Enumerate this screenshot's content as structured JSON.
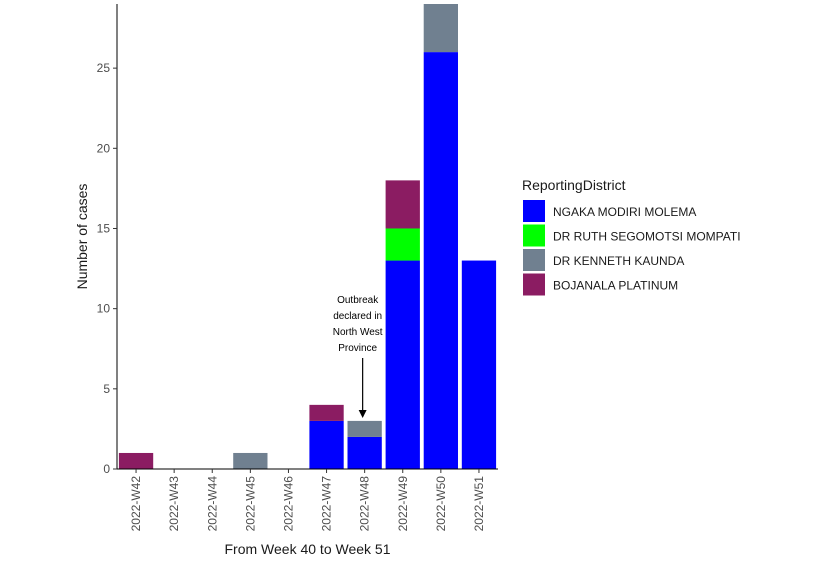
{
  "chart_data": {
    "type": "bar",
    "stacked": true,
    "xlabel": "From Week 40 to Week 51",
    "ylabel": "Number of cases",
    "categories": [
      "2022-W42",
      "2022-W43",
      "2022-W44",
      "2022-W45",
      "2022-W46",
      "2022-W47",
      "2022-W48",
      "2022-W49",
      "2022-W50",
      "2022-W51"
    ],
    "yticks": [
      0,
      5,
      10,
      15,
      20,
      25
    ],
    "ylim": [
      0,
      29
    ],
    "grid": false,
    "legend_title": "ReportingDistrict",
    "legend_position": "right",
    "series": [
      {
        "name": "NGAKA MODIRI MOLEMA",
        "color": "#0000FF",
        "values": [
          0,
          0,
          0,
          0,
          0,
          3,
          2,
          13,
          26,
          13
        ]
      },
      {
        "name": "DR RUTH SEGOMOTSI MOMPATI",
        "color": "#00FF00",
        "values": [
          0,
          0,
          0,
          0,
          0,
          0,
          0,
          2,
          0,
          0
        ]
      },
      {
        "name": "DR KENNETH KAUNDA",
        "color": "#708090",
        "values": [
          0,
          0,
          0,
          1,
          0,
          0,
          1,
          0,
          3,
          0
        ]
      },
      {
        "name": "BOJANALA PLATINUM",
        "color": "#8B1C62",
        "values": [
          1,
          0,
          0,
          0,
          0,
          1,
          0,
          3,
          0,
          0
        ]
      }
    ],
    "annotation": {
      "lines": [
        "Outbreak",
        "declared in",
        "North West",
        "Province"
      ],
      "category": "2022-W48"
    }
  }
}
